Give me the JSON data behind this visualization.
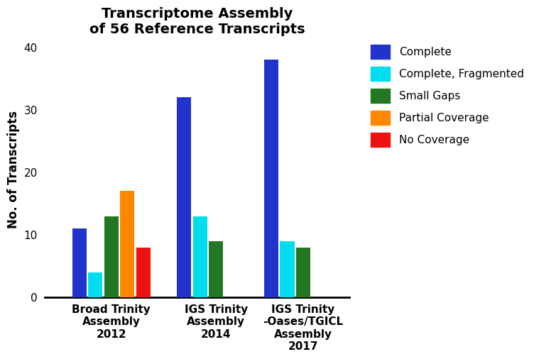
{
  "title": "Transcriptome Assembly\nof 56 Reference Transcripts",
  "ylabel": "No. of Transcripts",
  "categories": [
    "Broad Trinity\nAssembly\n2012",
    "IGS Trinity\nAssembly\n2014",
    "IGS Trinity\n-Oases/TGICL\nAssembly\n2017"
  ],
  "series": {
    "Complete": [
      11,
      32,
      38
    ],
    "Complete, Fragmented": [
      4,
      13,
      9
    ],
    "Small Gaps": [
      13,
      9,
      8
    ],
    "Partial Coverage": [
      17,
      0,
      0
    ],
    "No Coverage": [
      8,
      0,
      0
    ]
  },
  "colors": {
    "Complete": "#2233CC",
    "Complete, Fragmented": "#00DDEE",
    "Small Gaps": "#227722",
    "Partial Coverage": "#FF8800",
    "No Coverage": "#EE1111"
  },
  "ylim": [
    0,
    41
  ],
  "yticks": [
    0,
    10,
    20,
    30,
    40
  ],
  "bar_width": 0.055,
  "group_centers": [
    0.18,
    0.54,
    0.84
  ],
  "background_color": "#ffffff",
  "title_fontsize": 14,
  "axis_label_fontsize": 12,
  "tick_fontsize": 11,
  "legend_fontsize": 11
}
